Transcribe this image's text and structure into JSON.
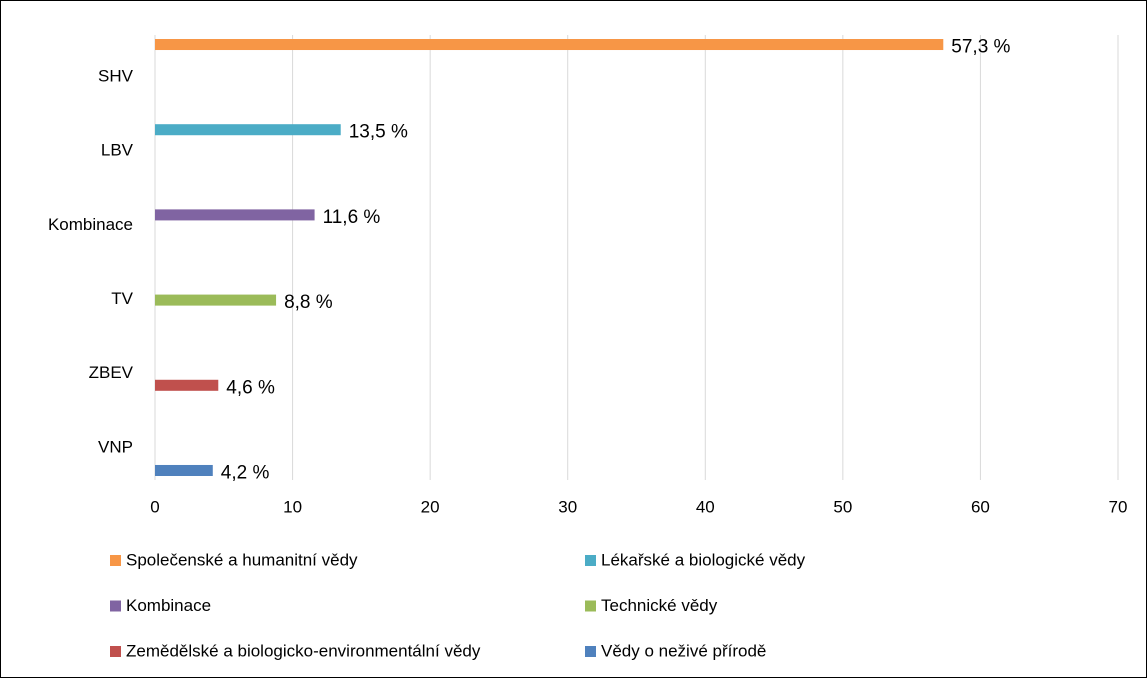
{
  "chart_data": {
    "type": "bar",
    "orientation": "horizontal",
    "categories": [
      "SHV",
      "LBV",
      "Kombinace",
      "TV",
      "ZBEV",
      "VNP"
    ],
    "series": [
      {
        "name": "Společenské a humanitní vědy",
        "color": "#f79646",
        "values": [
          57.3,
          null,
          null,
          null,
          null,
          null
        ],
        "value_labels": [
          "57,3 %",
          null,
          null,
          null,
          null,
          null
        ]
      },
      {
        "name": "Lékařské a biologické vědy",
        "color": "#4bacc6",
        "values": [
          null,
          13.5,
          null,
          null,
          null,
          null
        ],
        "value_labels": [
          null,
          "13,5 %",
          null,
          null,
          null,
          null
        ]
      },
      {
        "name": "Kombinace",
        "color": "#8064a2",
        "values": [
          null,
          null,
          11.6,
          null,
          null,
          null
        ],
        "value_labels": [
          null,
          null,
          "11,6 %",
          null,
          null,
          null
        ]
      },
      {
        "name": "Technické vědy",
        "color": "#9bbb59",
        "values": [
          null,
          null,
          null,
          8.8,
          null,
          null
        ],
        "value_labels": [
          null,
          null,
          null,
          "8,8 %",
          null,
          null
        ]
      },
      {
        "name": "Zemědělské a biologicko-environmentální vědy",
        "color": "#c0504d",
        "values": [
          null,
          null,
          null,
          null,
          4.6,
          null
        ],
        "value_labels": [
          null,
          null,
          null,
          null,
          "4,6 %",
          null
        ]
      },
      {
        "name": "Vědy o neživé přírodě",
        "color": "#4f81bd",
        "values": [
          null,
          null,
          null,
          null,
          null,
          4.2
        ],
        "value_labels": [
          null,
          null,
          null,
          null,
          null,
          "4,2 %"
        ]
      }
    ],
    "xlim": [
      0,
      70
    ],
    "xticks": [
      0,
      10,
      20,
      30,
      40,
      50,
      60,
      70
    ],
    "grid": true,
    "legend": "bottom"
  }
}
